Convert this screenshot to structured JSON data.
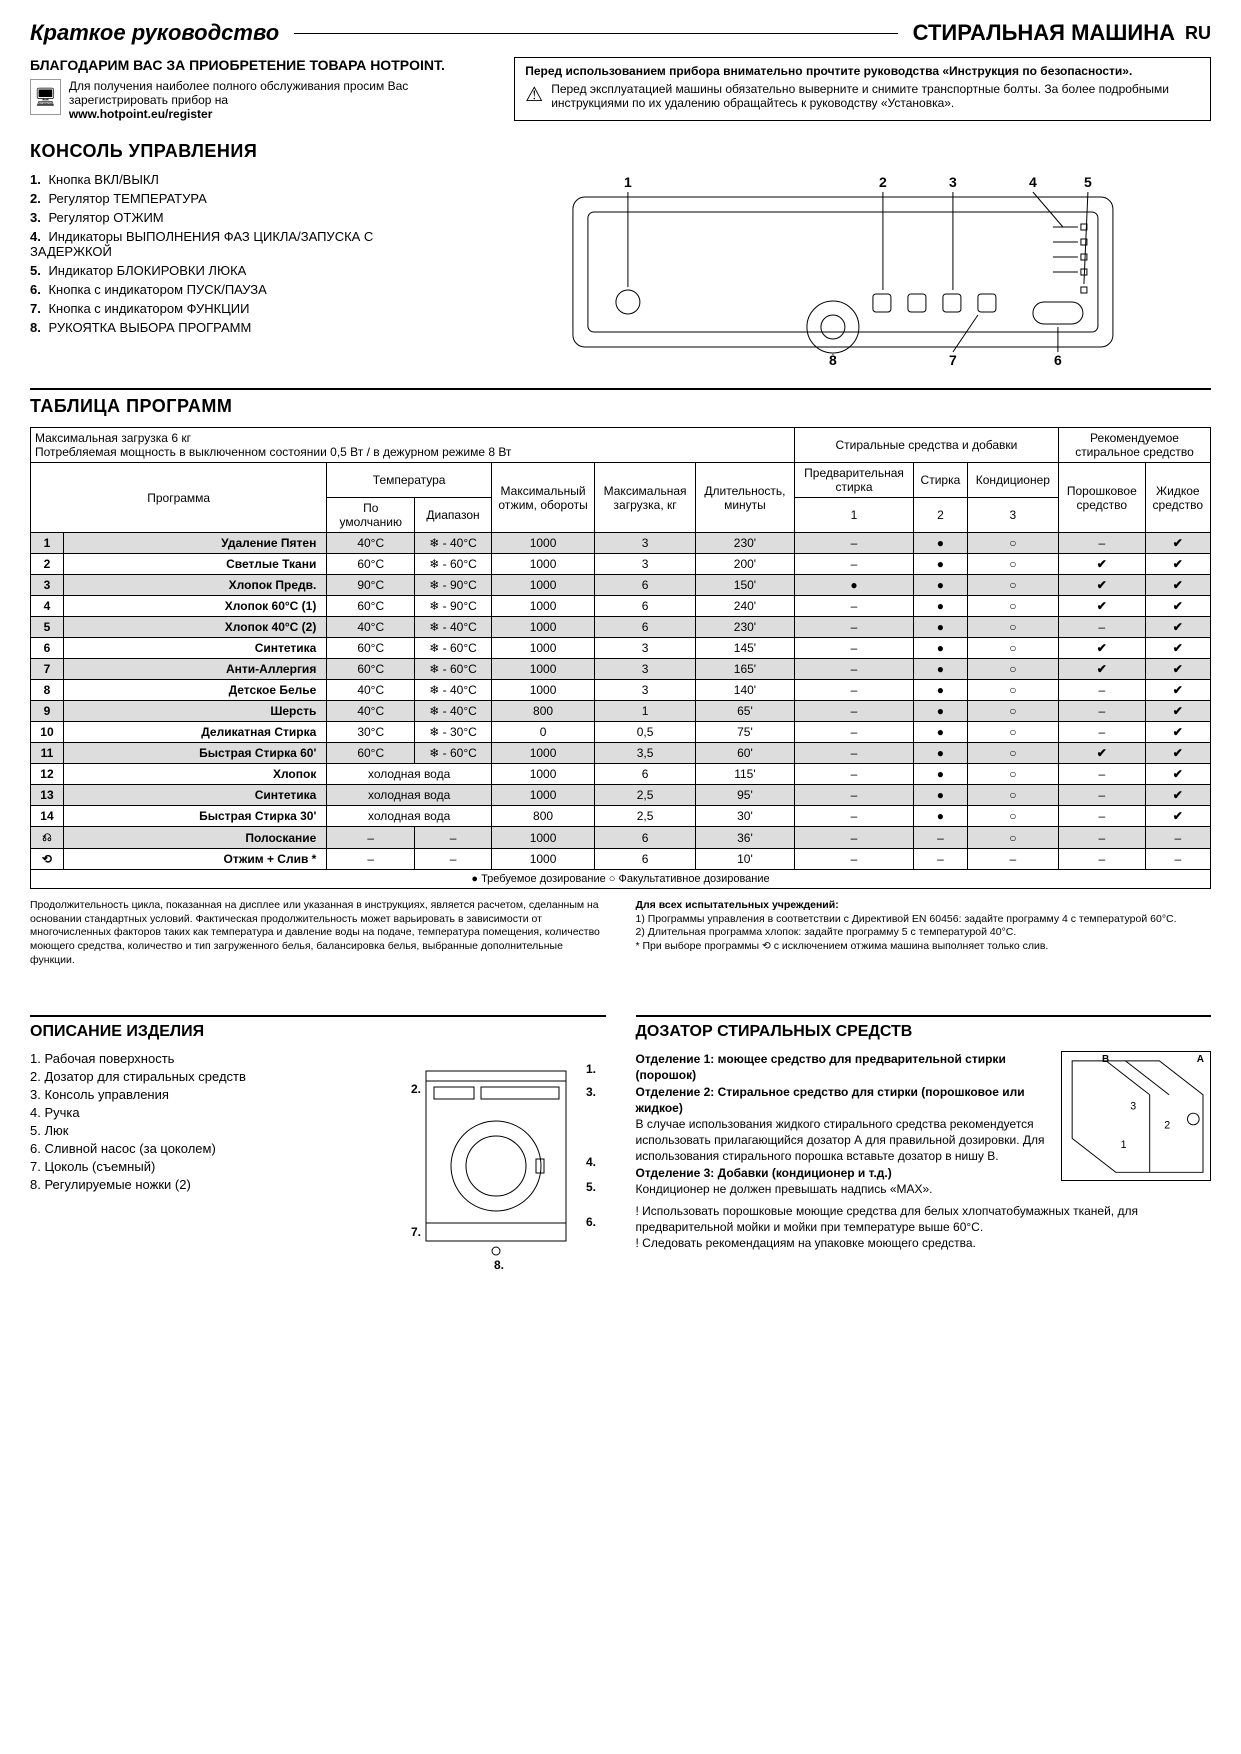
{
  "header": {
    "guide_title": "Краткое руководство",
    "model_title": "СТИРАЛЬНАЯ МАШИНА",
    "lang": "RU"
  },
  "intro": {
    "thanks": "БЛАГОДАРИМ ВАС ЗА ПРИОБРЕТЕНИЕ ТОВАРА HOTPOINT.",
    "reg_text": "Для получения наиболее полного обслуживания просим Вас зарегистрировать прибор на",
    "reg_url": "www.hotpoint.eu/register",
    "warn_title": "Перед использованием прибора внимательно прочтите руководства «Инструкция по безопасности».",
    "warn_body": "Перед эксплуатацией машины обязательно выверните и снимите транспортные болты. За более подробными инструкциями по их удалению обращайтесь к руководству «Установка»."
  },
  "console": {
    "heading": "КОНСОЛЬ УПРАВЛЕНИЯ",
    "items": [
      "Кнопка ВКЛ/ВЫКЛ",
      "Регулятор ТЕМПЕРАТУРА",
      "Регулятор ОТЖИМ",
      "Индикаторы ВЫПОЛНЕНИЯ ФАЗ ЦИКЛА/ЗАПУСКА С ЗАДЕРЖКОЙ",
      "Индикатор БЛОКИРОВКИ ЛЮКА",
      "Кнопка с индикатором ПУСК/ПАУЗА",
      "Кнопка с индикатором ФУНКЦИИ",
      "РУКОЯТКА ВЫБОРА ПРОГРАММ"
    ]
  },
  "progtable": {
    "heading": "ТАБЛИЦА ПРОГРАММ",
    "maxload": "Максимальная загрузка 6 кг",
    "power": "Потребляемая мощность в выключенном состоянии 0,5 Вт / в дежурном режиме 8 Вт",
    "header_det_group": "Стиральные средства и добавки",
    "header_rec_group": "Рекомендуемое стиральное средство",
    "col_program": "Программа",
    "col_temp": "Температура",
    "col_temp_def": "По умолчанию",
    "col_temp_range": "Диапазон",
    "col_spin": "Максимальный отжим, обороты",
    "col_load": "Максимальная загрузка, кг",
    "col_dur": "Длительность, минуты",
    "col_pre": "Предварительная стирка",
    "col_wash": "Стирка",
    "col_cond": "Кондиционер",
    "col_pow": "Порошковое средство",
    "col_liq": "Жидкое средство",
    "col_1": "1",
    "col_2": "2",
    "col_3": "3",
    "rows": [
      {
        "n": "1",
        "name": "Удаление Пятен",
        "td": "40°C",
        "tr": "❄ - 40°C",
        "sp": "1000",
        "ld": "3",
        "du": "230'",
        "c1": "–",
        "c2": "●",
        "c3": "○",
        "p": "–",
        "l": "✔",
        "sh": true
      },
      {
        "n": "2",
        "name": "Светлые Ткани",
        "td": "60°C",
        "tr": "❄ - 60°C",
        "sp": "1000",
        "ld": "3",
        "du": "200'",
        "c1": "–",
        "c2": "●",
        "c3": "○",
        "p": "✔",
        "l": "✔",
        "sh": false
      },
      {
        "n": "3",
        "name": "Хлопок Предв.",
        "td": "90°C",
        "tr": "❄ - 90°C",
        "sp": "1000",
        "ld": "6",
        "du": "150'",
        "c1": "●",
        "c2": "●",
        "c3": "○",
        "p": "✔",
        "l": "✔",
        "sh": true
      },
      {
        "n": "4",
        "name": "Хлопок 60°C (1)",
        "td": "60°C",
        "tr": "❄ - 90°C",
        "sp": "1000",
        "ld": "6",
        "du": "240'",
        "c1": "–",
        "c2": "●",
        "c3": "○",
        "p": "✔",
        "l": "✔",
        "sh": false
      },
      {
        "n": "5",
        "name": "Хлопок 40°C (2)",
        "td": "40°C",
        "tr": "❄ - 40°C",
        "sp": "1000",
        "ld": "6",
        "du": "230'",
        "c1": "–",
        "c2": "●",
        "c3": "○",
        "p": "–",
        "l": "✔",
        "sh": true
      },
      {
        "n": "6",
        "name": "Синтетика",
        "td": "60°C",
        "tr": "❄ - 60°C",
        "sp": "1000",
        "ld": "3",
        "du": "145'",
        "c1": "–",
        "c2": "●",
        "c3": "○",
        "p": "✔",
        "l": "✔",
        "sh": false
      },
      {
        "n": "7",
        "name": "Анти-Аллергия",
        "td": "60°C",
        "tr": "❄ - 60°C",
        "sp": "1000",
        "ld": "3",
        "du": "165'",
        "c1": "–",
        "c2": "●",
        "c3": "○",
        "p": "✔",
        "l": "✔",
        "sh": true
      },
      {
        "n": "8",
        "name": "Детское Белье",
        "td": "40°C",
        "tr": "❄ - 40°C",
        "sp": "1000",
        "ld": "3",
        "du": "140'",
        "c1": "–",
        "c2": "●",
        "c3": "○",
        "p": "–",
        "l": "✔",
        "sh": false
      },
      {
        "n": "9",
        "name": "Шерсть",
        "td": "40°C",
        "tr": "❄ - 40°C",
        "sp": "800",
        "ld": "1",
        "du": "65'",
        "c1": "–",
        "c2": "●",
        "c3": "○",
        "p": "–",
        "l": "✔",
        "sh": true
      },
      {
        "n": "10",
        "name": "Деликатная Стирка",
        "td": "30°C",
        "tr": "❄ - 30°C",
        "sp": "0",
        "ld": "0,5",
        "du": "75'",
        "c1": "–",
        "c2": "●",
        "c3": "○",
        "p": "–",
        "l": "✔",
        "sh": false
      },
      {
        "n": "11",
        "name": "Быстрая Стирка 60'",
        "td": "60°C",
        "tr": "❄ - 60°C",
        "sp": "1000",
        "ld": "3,5",
        "du": "60'",
        "c1": "–",
        "c2": "●",
        "c3": "○",
        "p": "✔",
        "l": "✔",
        "sh": true
      },
      {
        "n": "12",
        "name": "Хлопок",
        "td": "холодная вода",
        "tr": "",
        "sp": "1000",
        "ld": "6",
        "du": "115'",
        "c1": "–",
        "c2": "●",
        "c3": "○",
        "p": "–",
        "l": "✔",
        "sh": false,
        "merge": true
      },
      {
        "n": "13",
        "name": "Синтетика",
        "td": "холодная вода",
        "tr": "",
        "sp": "1000",
        "ld": "2,5",
        "du": "95'",
        "c1": "–",
        "c2": "●",
        "c3": "○",
        "p": "–",
        "l": "✔",
        "sh": true,
        "merge": true
      },
      {
        "n": "14",
        "name": "Быстрая Стирка 30'",
        "td": "холодная вода",
        "tr": "",
        "sp": "800",
        "ld": "2,5",
        "du": "30'",
        "c1": "–",
        "c2": "●",
        "c3": "○",
        "p": "–",
        "l": "✔",
        "sh": false,
        "merge": true
      },
      {
        "n": "⎌",
        "name": "Полоскание",
        "td": "–",
        "tr": "–",
        "sp": "1000",
        "ld": "6",
        "du": "36'",
        "c1": "–",
        "c2": "–",
        "c3": "○",
        "p": "–",
        "l": "–",
        "sh": true
      },
      {
        "n": "⟲",
        "name": "Отжим + Слив *",
        "td": "–",
        "tr": "–",
        "sp": "1000",
        "ld": "6",
        "du": "10'",
        "c1": "–",
        "c2": "–",
        "c3": "–",
        "p": "–",
        "l": "–",
        "sh": false
      }
    ],
    "legend": "● Требуемое дозирование   ○ Факультативное дозирование",
    "foot_left": "Продолжительность цикла, показанная на дисплее или указанная в инструкциях, является расчетом, сделанным на основании стандартных условий. Фактическая продолжительность может варьировать в зависимости от многочисленных факторов таких как температура и давление воды на подаче, температура помещения, количество моющего средства, количество и тип загруженного белья, балансировка белья, выбранные дополнительные функции.",
    "foot_right_title": "Для всех испытательных учреждений:",
    "foot_right_1": "1) Программы управления в соответствии с Директивой EN 60456: задайте программу 4 с температурой 60°C.",
    "foot_right_2": "2)  Длительная программа хлопок: задайте программу 5 с температурой 40°C.",
    "foot_right_3": "* При выборе программы ⟲ с исключением отжима машина выполняет только слив."
  },
  "desc": {
    "heading": "ОПИСАНИЕ ИЗДЕЛИЯ",
    "items": [
      "Рабочая поверхность",
      "Дозатор для стиральных средств",
      "Консоль управления",
      "Ручка",
      "Люк",
      "Сливной насос (за цоколем)",
      "Цоколь (съемный)",
      "Регулируемые ножки (2)"
    ]
  },
  "dosator": {
    "heading": "ДОЗАТОР СТИРАЛЬНЫХ СРЕДСТВ",
    "p1_bold1": "Отделение 1: моющее средство для предварительной стирки (порошок)",
    "p1_bold2": "Отделение 2: Стиральное средство для стирки (порошковое или жидкое)",
    "p1_body": "В случае использования жидкого стирального средства рекомендуется использовать прилагающийся дозатор А для правильной дозировки. Для использования стирального порошка вставьте дозатор в нишу В.",
    "p1_bold3": "Отделение 3: Добавки (кондиционер и т.д.)",
    "p1_tail": "Кондиционер не должен превышать надпись «MAX».",
    "excl1": "! Использовать порошковые моющие средства для белых хлопчатобумажных тканей, для предварительной мойки и мойки при температуре выше 60°C.",
    "excl2": "! Следовать рекомендациям на упаковке моющего средства.",
    "labels": {
      "a": "A",
      "b": "B"
    }
  }
}
